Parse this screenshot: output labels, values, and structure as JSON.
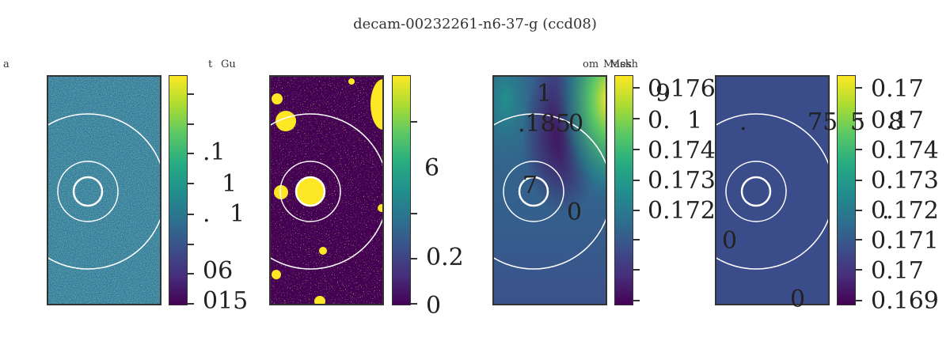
{
  "title": "decam-00232261-n6-37-g (ccd08)",
  "small_labels": [
    "a",
    "t",
    "Gu",
    "om",
    "Mask",
    "Mesh"
  ],
  "chart_data": [
    {
      "type": "heatmap",
      "title": "",
      "colormap": "viridis",
      "colorbar_labels": [
        ".1",
        "1",
        ".",
        "1",
        "06",
        "015"
      ]
    },
    {
      "type": "heatmap",
      "title": "",
      "colormap": "viridis",
      "colorbar_labels": [
        "6",
        "0.2",
        "0"
      ]
    },
    {
      "type": "heatmap",
      "title": "",
      "colormap": "viridis",
      "colorbar_labels": [
        "0.176",
        "0.",
        "1",
        "0.174",
        "0.173",
        "0.172"
      ],
      "overlay_labels": [
        "1",
        "9",
        ".185",
        "0",
        "7",
        "0"
      ]
    },
    {
      "type": "heatmap",
      "title": "",
      "colormap": "viridis",
      "colorbar_labels": [
        "0.17",
        "0.17",
        "0.174",
        "0.173",
        "0.172",
        "0.171",
        "0.17",
        "0.169"
      ],
      "overlay_labels": [
        ".",
        "75",
        "5",
        "8",
        ".",
        "0",
        "0"
      ]
    }
  ]
}
